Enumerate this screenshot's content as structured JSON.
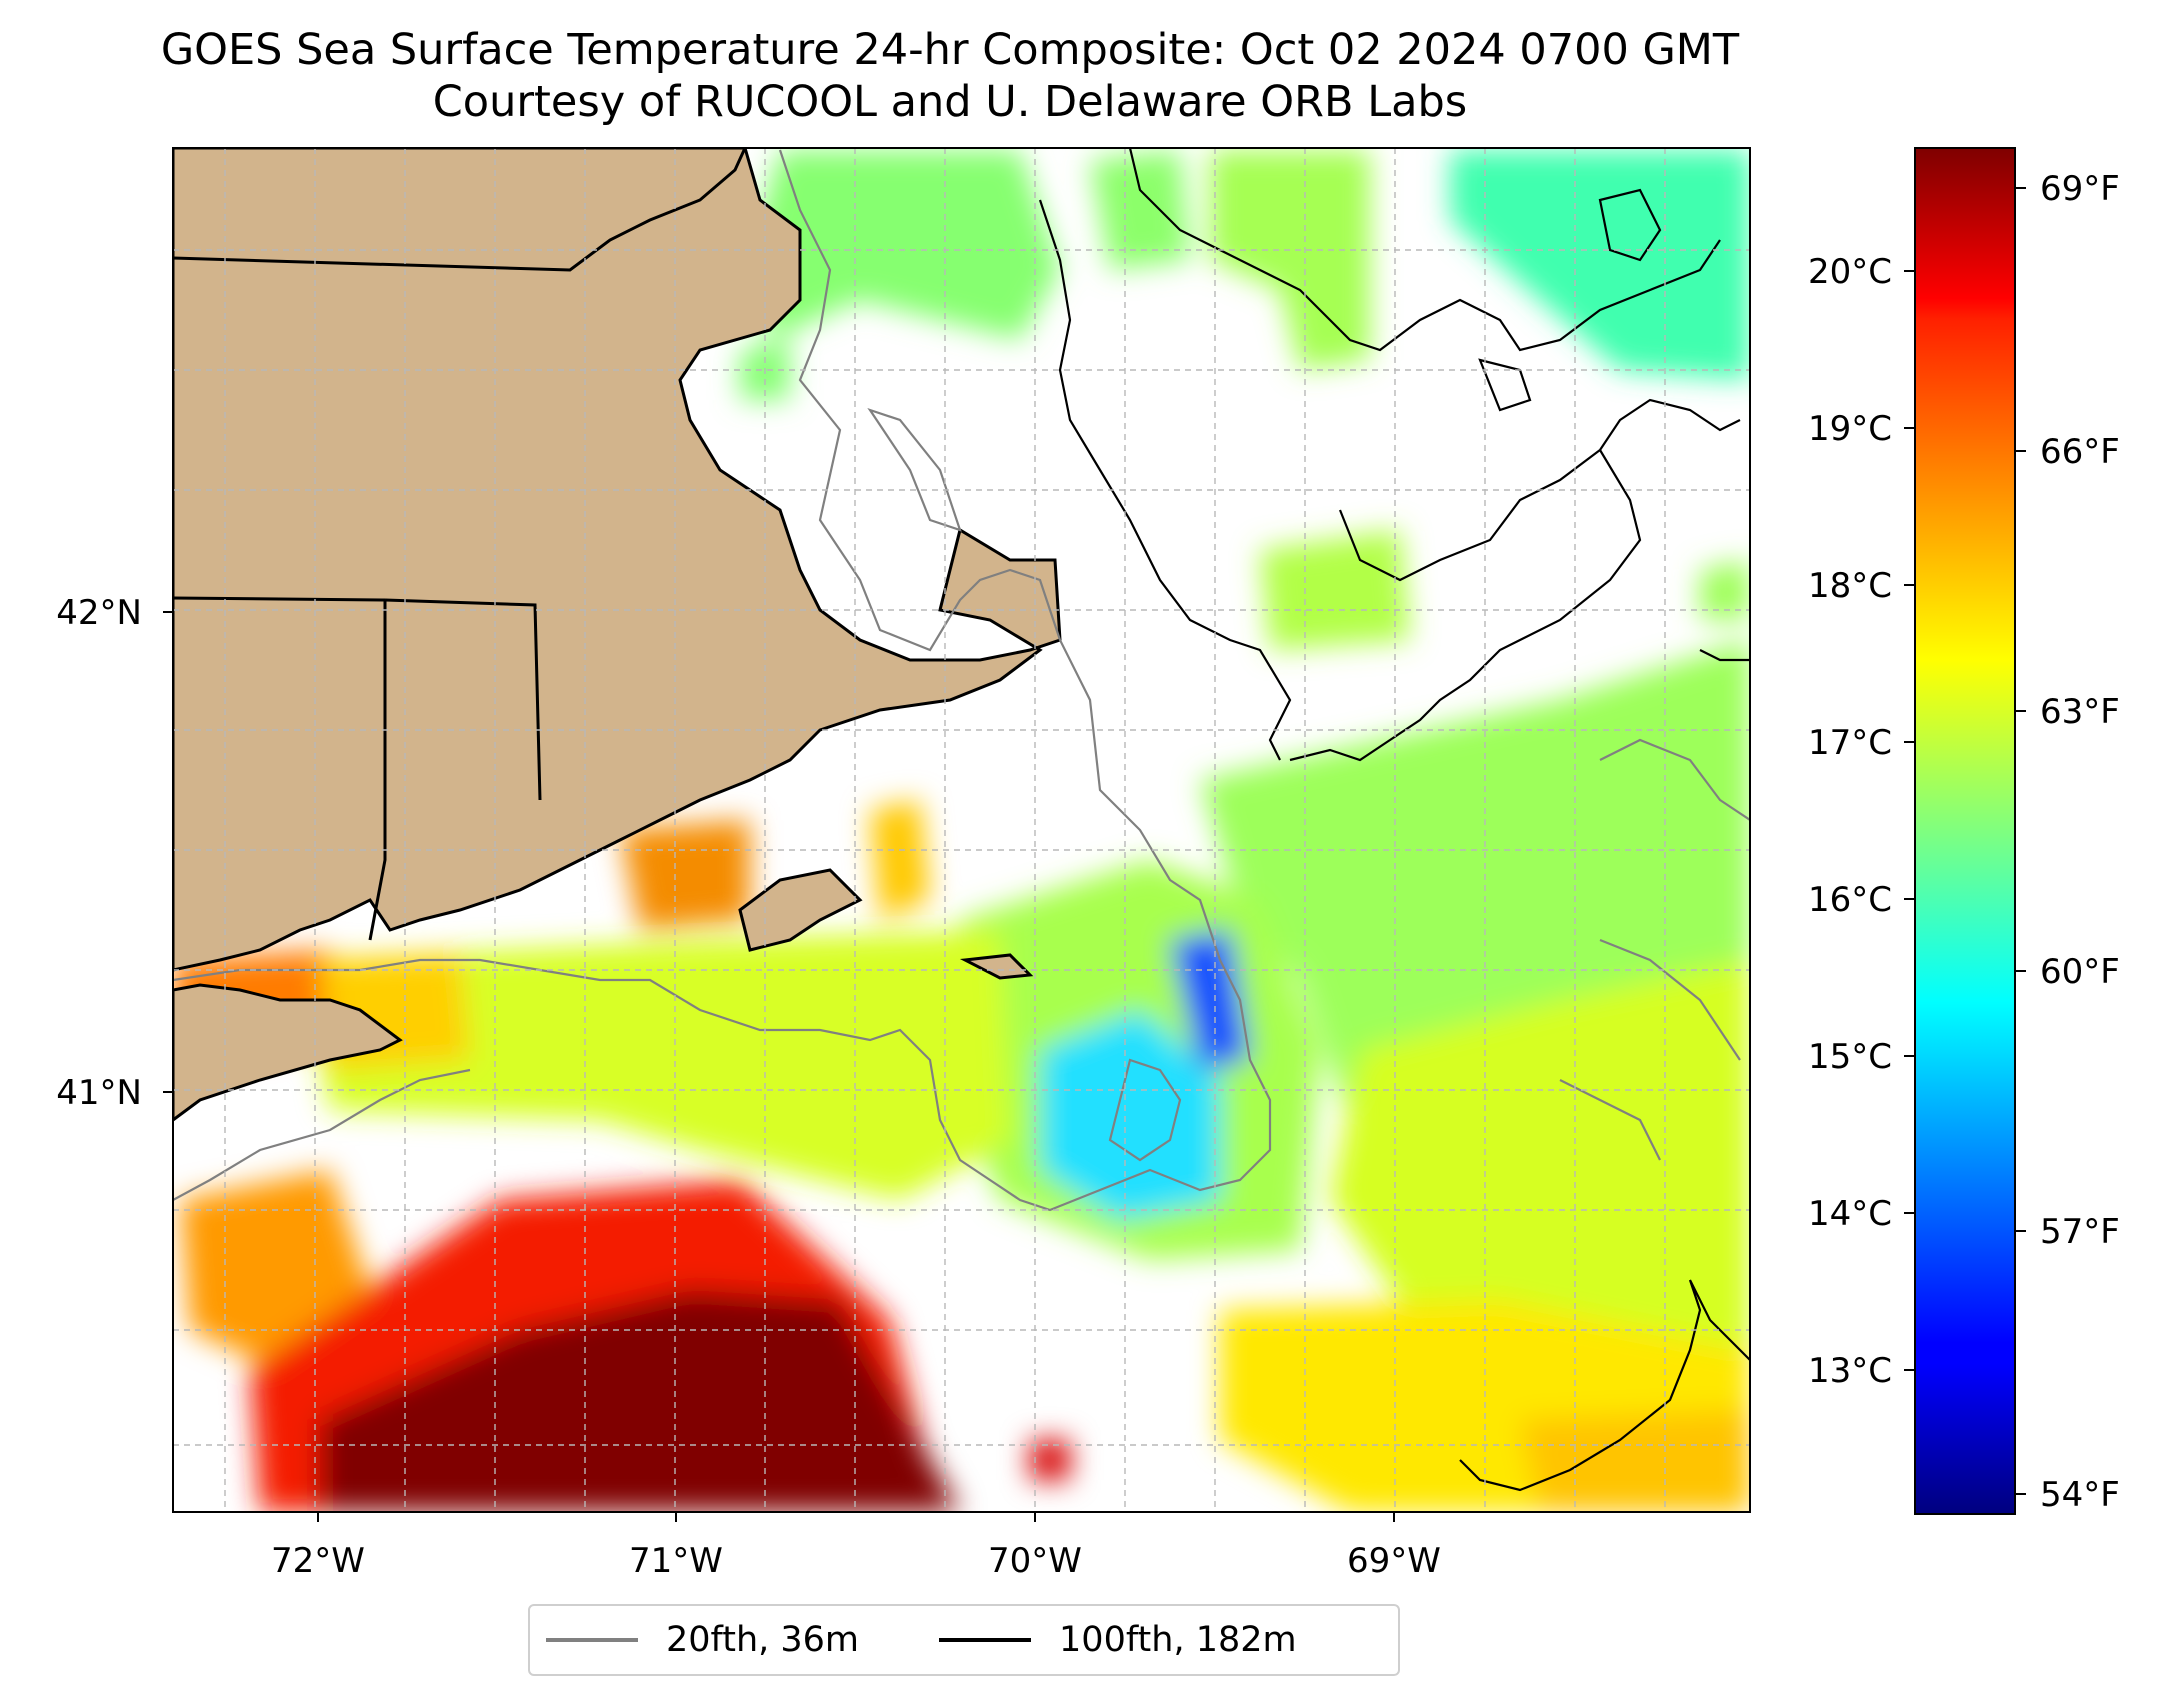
{
  "title": {
    "line1": "GOES Sea Surface Temperature 24-hr Composite: Oct 02 2024 0700 GMT",
    "line2": "Courtesy of RUCOOL and U. Delaware ORB Labs"
  },
  "map": {
    "lon_labels": [
      "72°W",
      "71°W",
      "70°W",
      "69°W"
    ],
    "lat_labels": [
      "42°N",
      "41°N"
    ],
    "land_color": "#d2b48c",
    "no_data_color": "#ffffff"
  },
  "colorbar": {
    "fahrenheit_labels": [
      "69°F",
      "66°F",
      "63°F",
      "60°F",
      "57°F",
      "54°F"
    ],
    "celsius_labels": [
      "20°C",
      "19°C",
      "18°C",
      "17°C",
      "16°C",
      "15°C",
      "14°C",
      "13°C"
    ],
    "colormap": "jet",
    "range_c": [
      12.1,
      20.9
    ]
  },
  "legend": {
    "items": [
      {
        "label": "20fth, 36m",
        "color": "#808080"
      },
      {
        "label": "100fth, 182m",
        "color": "#000000"
      }
    ]
  }
}
